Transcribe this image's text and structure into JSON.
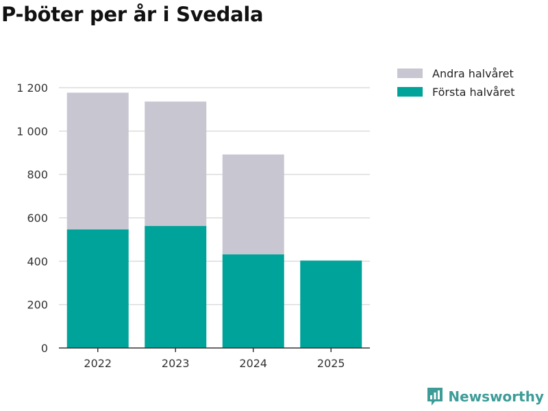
{
  "chart_data": {
    "type": "bar",
    "stacked": true,
    "title": "P-böter per år i Svedala",
    "categories": [
      "2022",
      "2023",
      "2024",
      "2025"
    ],
    "series": [
      {
        "name": "Första halvåret",
        "color": "#00a39a",
        "values": [
          547,
          563,
          432,
          403
        ]
      },
      {
        "name": "Andra halvåret",
        "color": "#c8c7d1",
        "values": [
          630,
          573,
          460,
          0
        ]
      }
    ],
    "legend_order": [
      "Andra halvåret",
      "Första halvåret"
    ],
    "yticks": [
      0,
      200,
      400,
      600,
      800,
      1000,
      1200
    ],
    "ytick_labels": [
      "0",
      "200",
      "400",
      "600",
      "800",
      "1 000",
      "1 200"
    ],
    "ylim": [
      0,
      1200
    ],
    "xlabel": "",
    "ylabel": "",
    "grid": true,
    "legend_position": "top-right"
  },
  "brand": {
    "name": "Newsworthy",
    "color": "#3d9c98"
  }
}
